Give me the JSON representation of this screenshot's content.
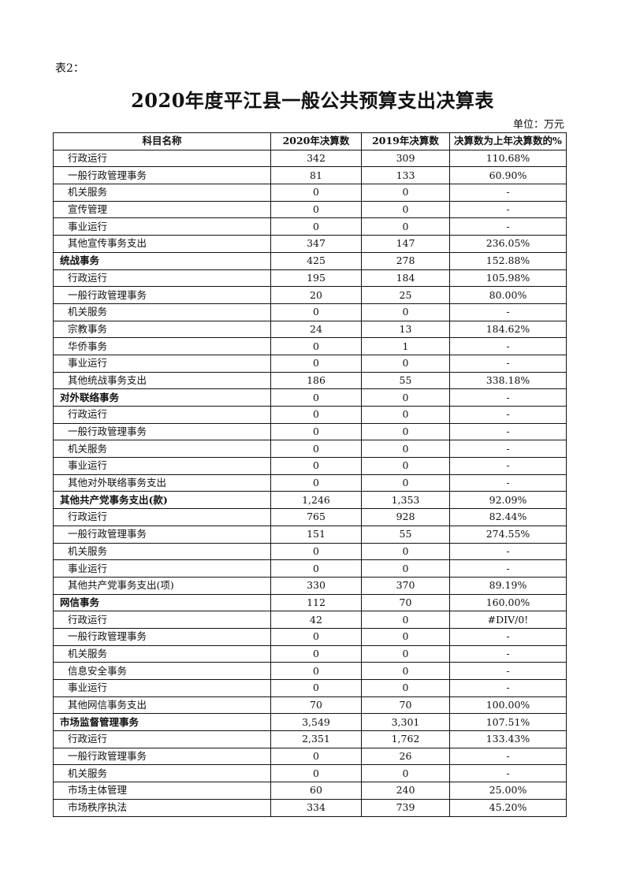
{
  "doc": {
    "label": "表2：",
    "title": "2020年度平江县一般公共预算支出决算表",
    "unit": "单位：万元"
  },
  "table": {
    "headers": [
      "科目名称",
      "2020年决算数",
      "2019年决算数",
      "决算数为上年决算数的%"
    ],
    "rows": [
      {
        "name": "行政运行",
        "y2020": "342",
        "y2019": "309",
        "pct": "110.68%",
        "level": "item"
      },
      {
        "name": "一般行政管理事务",
        "y2020": "81",
        "y2019": "133",
        "pct": "60.90%",
        "level": "item"
      },
      {
        "name": "机关服务",
        "y2020": "0",
        "y2019": "0",
        "pct": "-",
        "level": "item"
      },
      {
        "name": "宣传管理",
        "y2020": "0",
        "y2019": "0",
        "pct": "-",
        "level": "item"
      },
      {
        "name": "事业运行",
        "y2020": "0",
        "y2019": "0",
        "pct": "-",
        "level": "item"
      },
      {
        "name": "其他宣传事务支出",
        "y2020": "347",
        "y2019": "147",
        "pct": "236.05%",
        "level": "item"
      },
      {
        "name": "统战事务",
        "y2020": "425",
        "y2019": "278",
        "pct": "152.88%",
        "level": "category"
      },
      {
        "name": "行政运行",
        "y2020": "195",
        "y2019": "184",
        "pct": "105.98%",
        "level": "item"
      },
      {
        "name": "一般行政管理事务",
        "y2020": "20",
        "y2019": "25",
        "pct": "80.00%",
        "level": "item"
      },
      {
        "name": "机关服务",
        "y2020": "0",
        "y2019": "0",
        "pct": "-",
        "level": "item"
      },
      {
        "name": "宗教事务",
        "y2020": "24",
        "y2019": "13",
        "pct": "184.62%",
        "level": "item"
      },
      {
        "name": "华侨事务",
        "y2020": "0",
        "y2019": "1",
        "pct": "-",
        "level": "item"
      },
      {
        "name": "事业运行",
        "y2020": "0",
        "y2019": "0",
        "pct": "-",
        "level": "item"
      },
      {
        "name": "其他统战事务支出",
        "y2020": "186",
        "y2019": "55",
        "pct": "338.18%",
        "level": "item"
      },
      {
        "name": "对外联络事务",
        "y2020": "0",
        "y2019": "0",
        "pct": "-",
        "level": "category"
      },
      {
        "name": "行政运行",
        "y2020": "0",
        "y2019": "0",
        "pct": "-",
        "level": "item"
      },
      {
        "name": "一般行政管理事务",
        "y2020": "0",
        "y2019": "0",
        "pct": "-",
        "level": "item"
      },
      {
        "name": "机关服务",
        "y2020": "0",
        "y2019": "0",
        "pct": "-",
        "level": "item"
      },
      {
        "name": "事业运行",
        "y2020": "0",
        "y2019": "0",
        "pct": "-",
        "level": "item"
      },
      {
        "name": "其他对外联络事务支出",
        "y2020": "0",
        "y2019": "0",
        "pct": "-",
        "level": "item"
      },
      {
        "name": "其他共产党事务支出(款)",
        "y2020": "1,246",
        "y2019": "1,353",
        "pct": "92.09%",
        "level": "category"
      },
      {
        "name": "行政运行",
        "y2020": "765",
        "y2019": "928",
        "pct": "82.44%",
        "level": "item"
      },
      {
        "name": "一般行政管理事务",
        "y2020": "151",
        "y2019": "55",
        "pct": "274.55%",
        "level": "item"
      },
      {
        "name": "机关服务",
        "y2020": "0",
        "y2019": "0",
        "pct": "-",
        "level": "item"
      },
      {
        "name": "事业运行",
        "y2020": "0",
        "y2019": "0",
        "pct": "-",
        "level": "item"
      },
      {
        "name": "其他共产党事务支出(项)",
        "y2020": "330",
        "y2019": "370",
        "pct": "89.19%",
        "level": "item"
      },
      {
        "name": "网信事务",
        "y2020": "112",
        "y2019": "70",
        "pct": "160.00%",
        "level": "category"
      },
      {
        "name": "行政运行",
        "y2020": "42",
        "y2019": "0",
        "pct": "#DIV/0!",
        "level": "item"
      },
      {
        "name": "一般行政管理事务",
        "y2020": "0",
        "y2019": "0",
        "pct": "-",
        "level": "item"
      },
      {
        "name": "机关服务",
        "y2020": "0",
        "y2019": "0",
        "pct": "-",
        "level": "item"
      },
      {
        "name": "信息安全事务",
        "y2020": "0",
        "y2019": "0",
        "pct": "-",
        "level": "item"
      },
      {
        "name": "事业运行",
        "y2020": "0",
        "y2019": "0",
        "pct": "-",
        "level": "item"
      },
      {
        "name": "其他网信事务支出",
        "y2020": "70",
        "y2019": "70",
        "pct": "100.00%",
        "level": "item"
      },
      {
        "name": "市场监督管理事务",
        "y2020": "3,549",
        "y2019": "3,301",
        "pct": "107.51%",
        "level": "category"
      },
      {
        "name": "行政运行",
        "y2020": "2,351",
        "y2019": "1,762",
        "pct": "133.43%",
        "level": "item"
      },
      {
        "name": "一般行政管理事务",
        "y2020": "0",
        "y2019": "26",
        "pct": "-",
        "level": "item"
      },
      {
        "name": "机关服务",
        "y2020": "0",
        "y2019": "0",
        "pct": "-",
        "level": "item"
      },
      {
        "name": "市场主体管理",
        "y2020": "60",
        "y2019": "240",
        "pct": "25.00%",
        "level": "item"
      },
      {
        "name": "市场秩序执法",
        "y2020": "334",
        "y2019": "739",
        "pct": "45.20%",
        "level": "item"
      }
    ]
  }
}
